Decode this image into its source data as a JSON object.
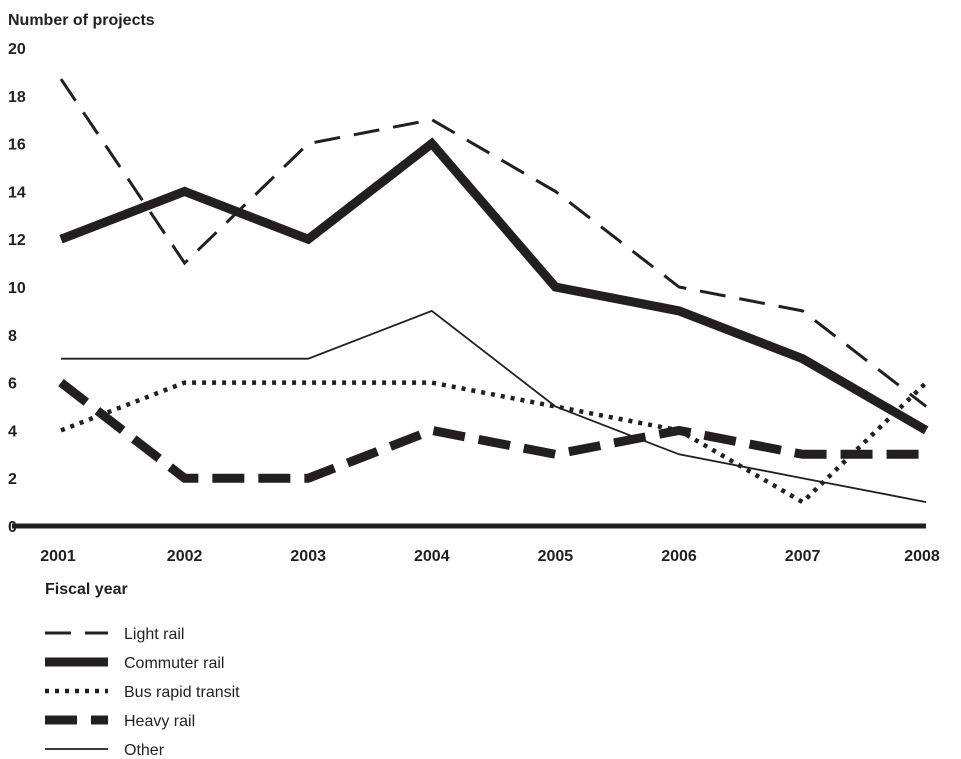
{
  "chart_data": {
    "type": "line",
    "ylabel": "Number of projects",
    "xlabel": "Fiscal year",
    "categories": [
      "2001",
      "2002",
      "2003",
      "2004",
      "2005",
      "2006",
      "2007",
      "2008"
    ],
    "y_ticks": [
      "0",
      "2",
      "4",
      "6",
      "8",
      "10",
      "12",
      "14",
      "16",
      "18",
      "20"
    ],
    "ylim": [
      0,
      20
    ],
    "grid": false,
    "legend_position": "bottom-left",
    "series": [
      {
        "name": "Light rail",
        "style": "long-dash",
        "values": [
          18.7,
          11,
          16,
          17,
          14,
          10,
          9,
          5
        ]
      },
      {
        "name": "Commuter rail",
        "style": "thick-solid",
        "values": [
          12,
          14,
          12,
          16,
          10,
          9,
          7,
          4
        ]
      },
      {
        "name": "Bus rapid transit",
        "style": "dotted",
        "values": [
          4,
          6,
          6,
          6,
          5,
          4,
          1,
          6
        ]
      },
      {
        "name": "Heavy rail",
        "style": "thick-dash",
        "values": [
          6,
          2,
          2,
          4,
          3,
          4,
          3,
          3
        ]
      },
      {
        "name": "Other",
        "style": "thin-solid",
        "values": [
          7,
          7,
          7,
          9,
          5,
          3,
          2,
          1
        ]
      }
    ],
    "colors": {
      "ink": "#231f20"
    }
  }
}
